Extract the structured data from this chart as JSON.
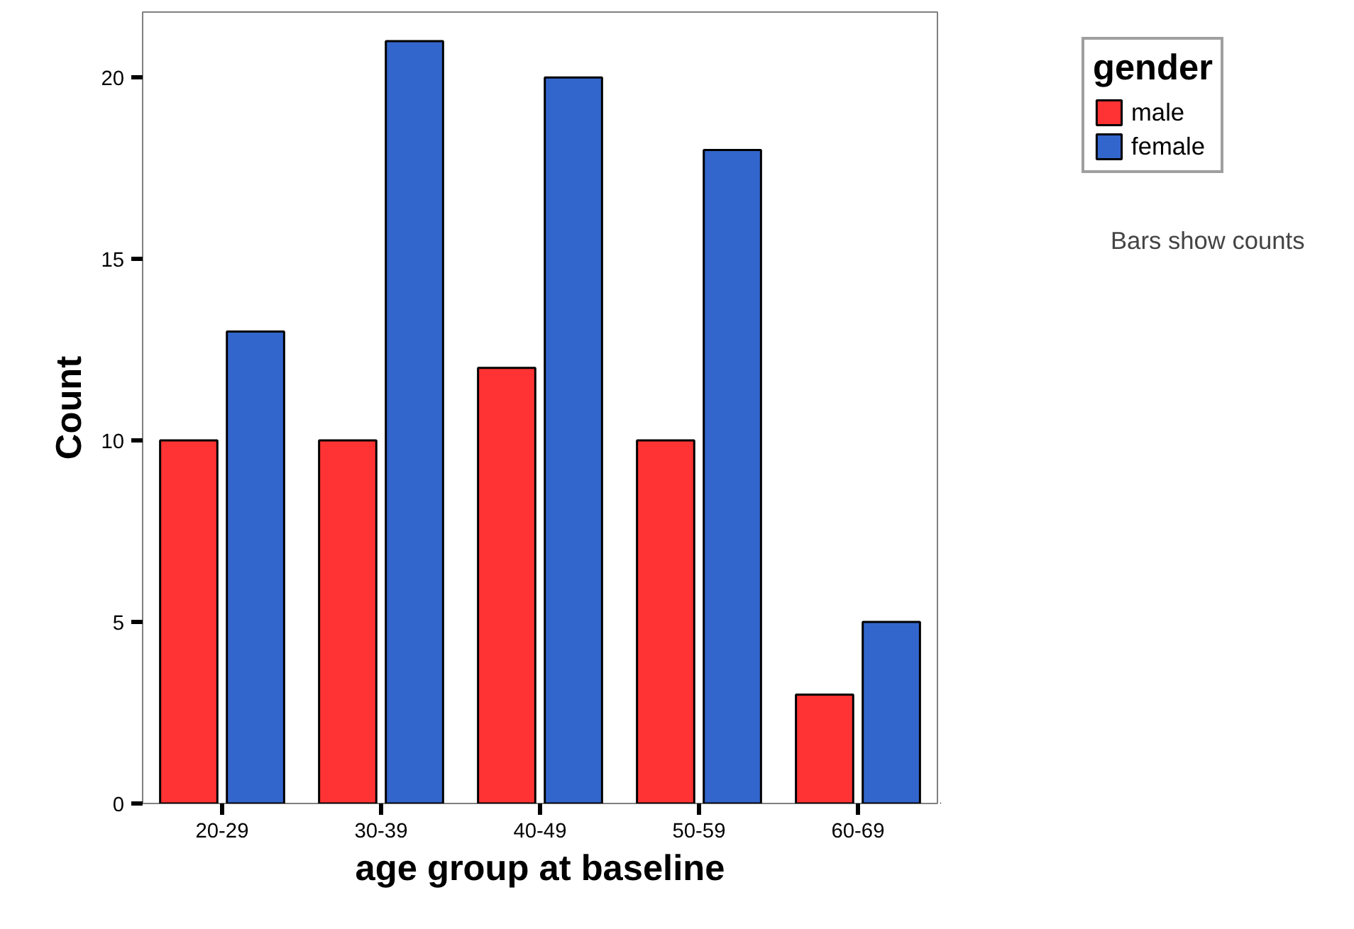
{
  "chart_data": {
    "type": "bar",
    "xlabel": "age group at baseline",
    "ylabel": "Count",
    "legend_title": "gender",
    "categories": [
      "20-29",
      "30-39",
      "40-49",
      "50-59",
      "60-69"
    ],
    "series": [
      {
        "name": "male",
        "color": "#ff3333",
        "values": [
          10,
          10,
          12,
          10,
          3
        ]
      },
      {
        "name": "female",
        "color": "#3366cc",
        "values": [
          13,
          21,
          20,
          18,
          5
        ]
      }
    ],
    "ylim": [
      0,
      21.8
    ],
    "yticks": [
      0,
      5,
      10,
      15,
      20
    ],
    "grid": false,
    "legend": "top right",
    "annotations": [
      "Bars show counts"
    ]
  }
}
